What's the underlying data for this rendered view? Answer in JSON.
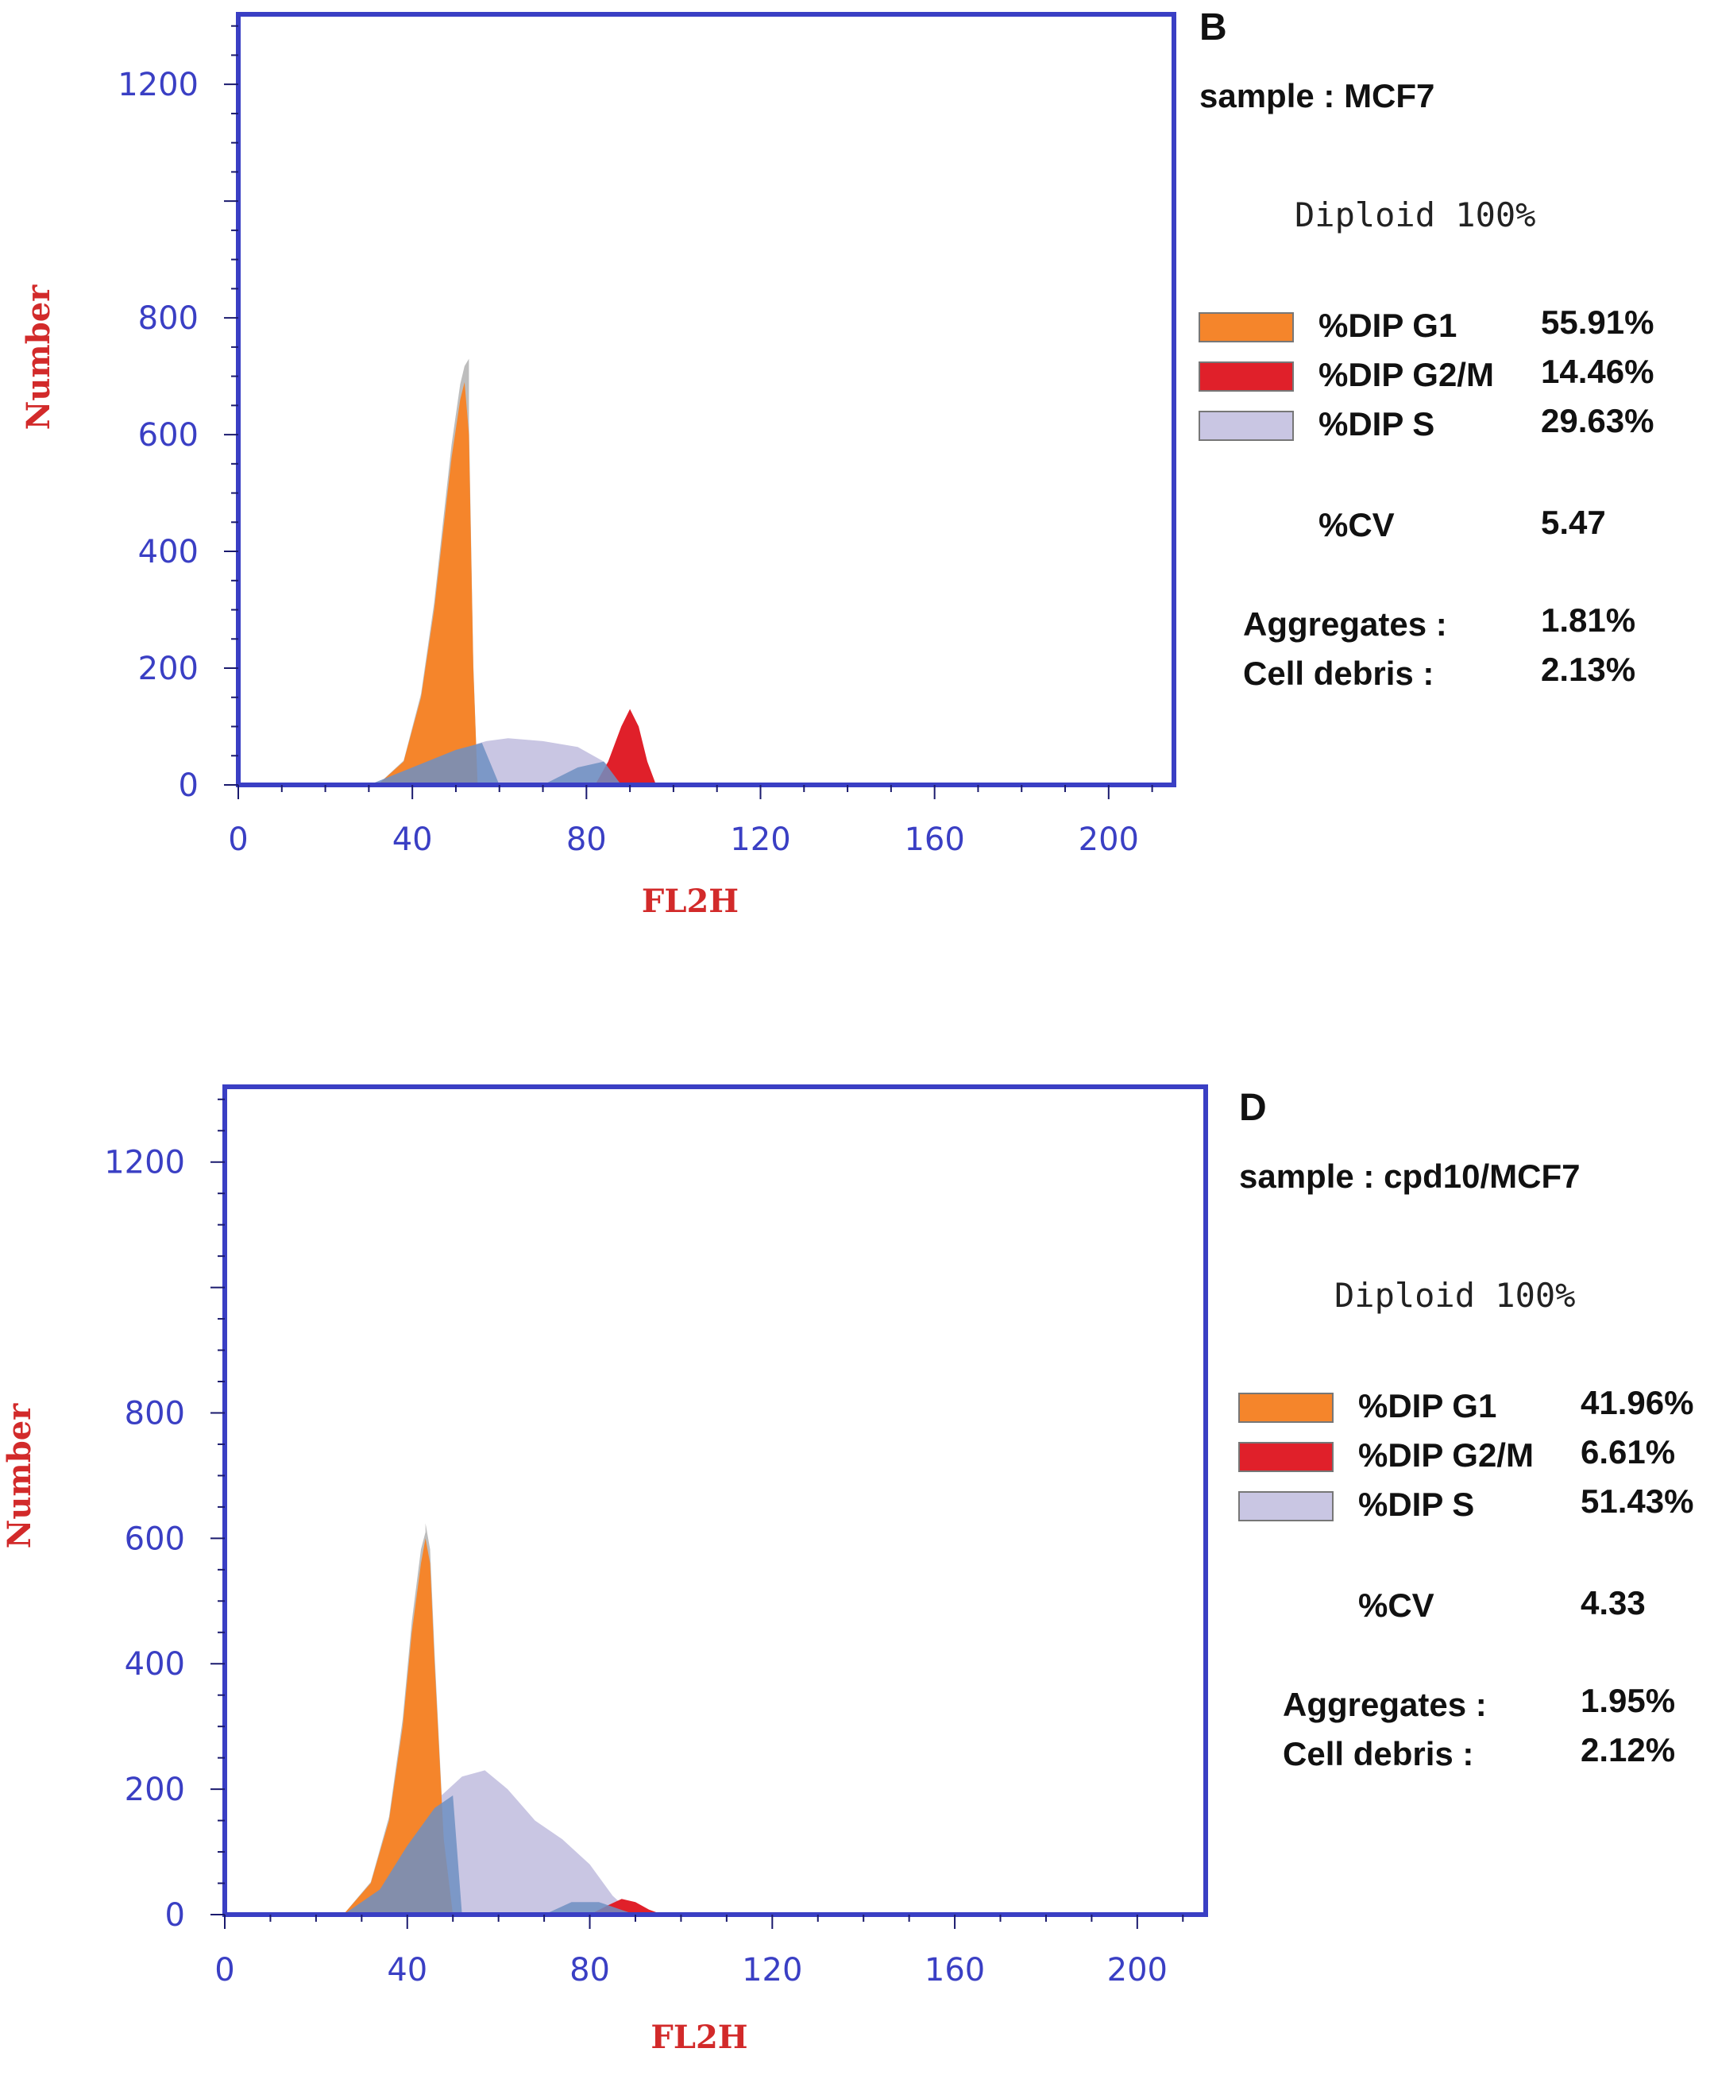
{
  "chart_data": [
    {
      "type": "area",
      "panel_label": "B",
      "sample": "sample : MCF7",
      "ploidy": "Diploid 100%",
      "xlabel": "FL2H",
      "ylabel": "Number",
      "xlim": [
        0,
        215
      ],
      "ylim": [
        0,
        1320
      ],
      "x_ticks": [
        0,
        40,
        80,
        120,
        160,
        200
      ],
      "y_ticks": [
        0,
        200,
        400,
        600,
        800,
        1200
      ],
      "colors": {
        "G1": "#f5852b",
        "G2M": "#e0202a",
        "S": "#c9c6e3",
        "overlap": "#6f8fc2",
        "raw": "#bdbdbd"
      },
      "legend": [
        {
          "key": "G1",
          "label": "%DIP G1",
          "value": "55.91%",
          "color": "#f5852b"
        },
        {
          "key": "G2M",
          "label": "%DIP G2/M",
          "value": "14.46%",
          "color": "#e0202a"
        },
        {
          "key": "S",
          "label": "%DIP S",
          "value": "29.63%",
          "color": "#c9c6e3"
        }
      ],
      "cv": {
        "label": "%CV",
        "value": "5.47"
      },
      "aggregates": {
        "label": "Aggregates :",
        "value": "1.81%"
      },
      "cell_debris": {
        "label": "Cell debris  :",
        "value": "2.13%"
      },
      "series": [
        {
          "name": "G1",
          "x": [
            32,
            38,
            42,
            45,
            47,
            49,
            51,
            52,
            53,
            54,
            55
          ],
          "y": [
            0,
            40,
            150,
            300,
            430,
            560,
            660,
            690,
            600,
            200,
            0
          ]
        },
        {
          "name": "S",
          "x": [
            32,
            40,
            50,
            57,
            62,
            70,
            78,
            84,
            88,
            92
          ],
          "y": [
            0,
            20,
            60,
            75,
            80,
            75,
            65,
            40,
            15,
            0
          ]
        },
        {
          "name": "G2M",
          "x": [
            82,
            85,
            88,
            90,
            92,
            94,
            96
          ],
          "y": [
            0,
            40,
            100,
            130,
            100,
            40,
            0
          ]
        },
        {
          "name": "overlap",
          "x": [
            30,
            40,
            50,
            56,
            60,
            70,
            78,
            84,
            88
          ],
          "y": [
            0,
            30,
            60,
            72,
            0,
            0,
            30,
            40,
            0
          ]
        }
      ],
      "raw_peak": {
        "x": 53,
        "y": 730
      }
    },
    {
      "type": "area",
      "panel_label": "D",
      "sample": "sample : cpd10/MCF7",
      "ploidy": "Diploid 100%",
      "xlabel": "FL2H",
      "ylabel": "Number",
      "xlim": [
        0,
        215
      ],
      "ylim": [
        0,
        1320
      ],
      "x_ticks": [
        0,
        40,
        80,
        120,
        160,
        200
      ],
      "y_ticks": [
        0,
        200,
        400,
        600,
        800,
        1200
      ],
      "colors": {
        "G1": "#f5852b",
        "G2M": "#e0202a",
        "S": "#c9c6e3",
        "overlap": "#6f8fc2",
        "raw": "#bdbdbd"
      },
      "legend": [
        {
          "key": "G1",
          "label": "%DIP G1",
          "value": "41.96%",
          "color": "#f5852b"
        },
        {
          "key": "G2M",
          "label": "%DIP G2/M",
          "value": "6.61%",
          "color": "#e0202a"
        },
        {
          "key": "S",
          "label": "%DIP S",
          "value": "51.43%",
          "color": "#c9c6e3"
        }
      ],
      "cv": {
        "label": "%CV",
        "value": "4.33"
      },
      "aggregates": {
        "label": "Aggregates :",
        "value": "1.95%"
      },
      "cell_debris": {
        "label": "Cell debris  :",
        "value": "2.12%"
      },
      "series": [
        {
          "name": "G1",
          "x": [
            26,
            32,
            36,
            39,
            41,
            43,
            44,
            45,
            46,
            48,
            50
          ],
          "y": [
            0,
            50,
            150,
            300,
            450,
            560,
            600,
            560,
            400,
            120,
            0
          ]
        },
        {
          "name": "S",
          "x": [
            26,
            34,
            40,
            46,
            52,
            57,
            62,
            68,
            74,
            80,
            85,
            88,
            92
          ],
          "y": [
            0,
            40,
            110,
            180,
            220,
            230,
            200,
            150,
            120,
            80,
            30,
            10,
            0
          ]
        },
        {
          "name": "G2M",
          "x": [
            80,
            84,
            87,
            90,
            93,
            96
          ],
          "y": [
            0,
            15,
            25,
            20,
            8,
            0
          ]
        },
        {
          "name": "overlap",
          "x": [
            26,
            34,
            40,
            44,
            46,
            50,
            52,
            70,
            76,
            82,
            86,
            90
          ],
          "y": [
            0,
            40,
            110,
            150,
            170,
            190,
            0,
            0,
            20,
            20,
            10,
            0
          ]
        }
      ],
      "raw_peak": {
        "x": 44,
        "y": 610
      }
    }
  ]
}
